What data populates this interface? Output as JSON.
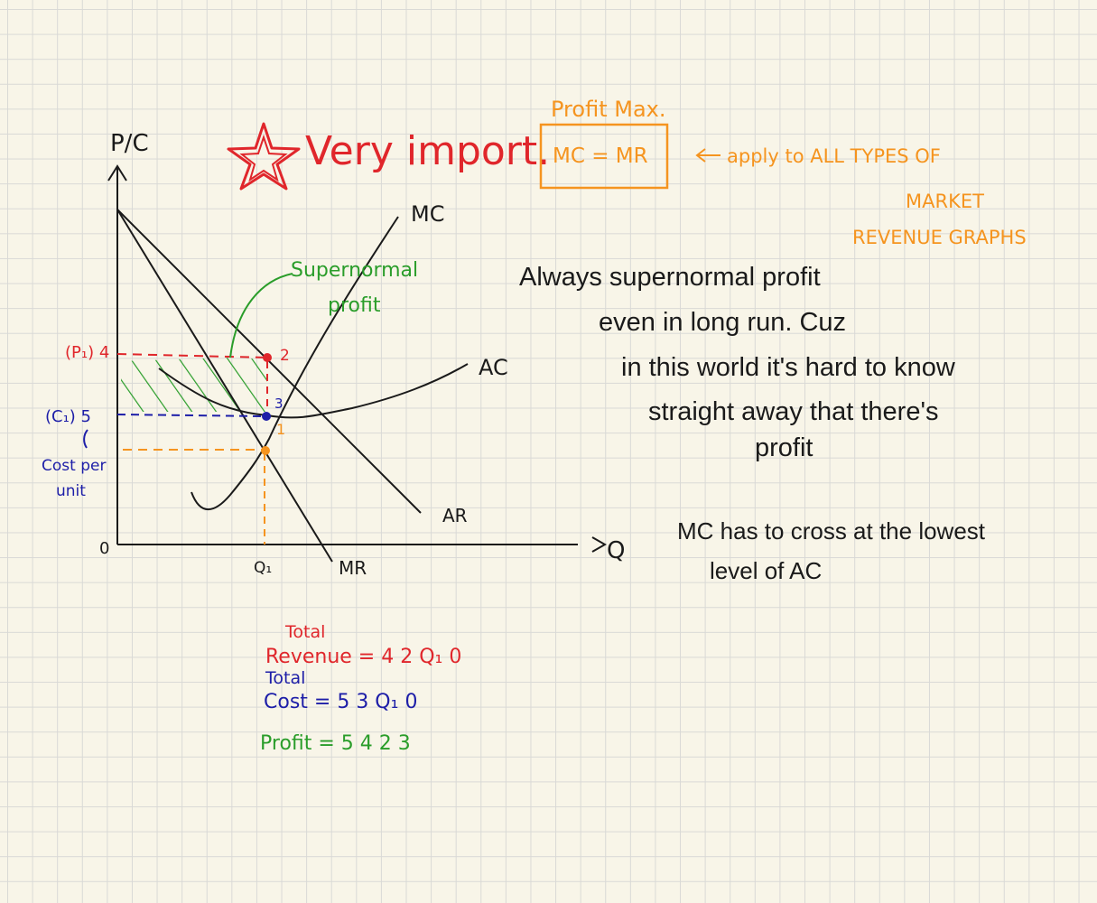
{
  "colors": {
    "ink": "#1a1a1a",
    "red": "#e0262b",
    "orange": "#f5941f",
    "green": "#2a9d2a",
    "blue": "#1d1ea8"
  },
  "header": {
    "star_icon": "star-icon",
    "title": "Very import.",
    "profit_max_label": "Profit Max.",
    "rule": "MC = MR",
    "arrow_icon": "arrow-left-icon",
    "apply_note_line1": "apply to ALL  TYPES OF",
    "apply_note_line2": "MARKET",
    "apply_note_line3": "REVENUE GRAPHS"
  },
  "graph": {
    "y_axis_label": "P/C",
    "x_axis_label": "Q",
    "origin_label": "0",
    "q1_label": "Q₁",
    "p1_label": "(P₁) 4",
    "c1_label": "(C₁) 5",
    "cost_per_unit_line1": "Cost per",
    "cost_per_unit_line2": "unit",
    "mc_label": "MC",
    "ac_label": "AC",
    "ar_label": "AR",
    "mr_label": "MR",
    "supernormal_line1": "Supernormal",
    "supernormal_line2": "profit",
    "point_1": "1",
    "point_2": "2",
    "point_3": "3"
  },
  "notes": {
    "line1": "Always supernormal profit",
    "line2": "even in long run. Cuz",
    "line3": "in this world it's hard to know",
    "line4": "straight away that there's",
    "line5": "profit",
    "mc_note_line1": "MC  has to cross at the lowest",
    "mc_note_line2": "level of  AC"
  },
  "totals": {
    "total_label_1": "Total",
    "revenue": "Revenue = 4 2 Q₁ 0",
    "total_label_2": "Total",
    "cost": "Cost =  5 3 Q₁ 0",
    "profit": "Profit  =  5 4 2 3"
  }
}
